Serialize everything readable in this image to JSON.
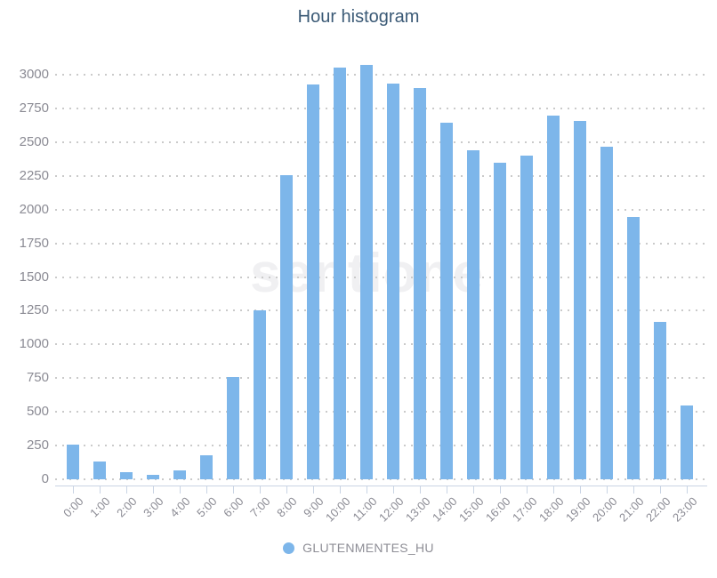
{
  "title": "Hour histogram",
  "watermark_text": "sentione",
  "legend": {
    "label": "GLUTENMENTES_HU"
  },
  "colors": {
    "bar": "#7db6ea",
    "title": "#3b5a76",
    "axis_label": "#8b8b94",
    "grid_dot": "#cacaca",
    "axis_line": "#c9d4e4",
    "legend_text": "#8e8e96",
    "watermark": "#f0f0f2"
  },
  "chart_data": {
    "type": "bar",
    "title": "Hour histogram",
    "categories": [
      "0:00",
      "1:00",
      "2:00",
      "3:00",
      "4:00",
      "5:00",
      "6:00",
      "7:00",
      "8:00",
      "9:00",
      "10:00",
      "11:00",
      "12:00",
      "13:00",
      "14:00",
      "15:00",
      "16:00",
      "17:00",
      "18:00",
      "19:00",
      "20:00",
      "21:00",
      "22:00",
      "23:00"
    ],
    "series": [
      {
        "name": "GLUTENMENTES_HU",
        "values": [
          255,
          130,
          55,
          30,
          65,
          180,
          755,
          1255,
          2255,
          2930,
          3050,
          3070,
          2935,
          2900,
          2645,
          2440,
          2345,
          2400,
          2700,
          2655,
          2465,
          1945,
          1165,
          550
        ]
      }
    ],
    "xlabel": "",
    "ylabel": "",
    "ylim": [
      0,
      3100
    ],
    "yticks": [
      0,
      250,
      500,
      750,
      1000,
      1250,
      1500,
      1750,
      2000,
      2250,
      2500,
      2750,
      3000
    ],
    "grid": "horizontal-dotted",
    "legend_position": "bottom"
  }
}
